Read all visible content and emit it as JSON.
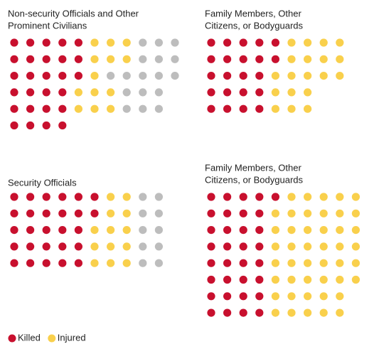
{
  "chart_data": [
    {
      "type": "dot-matrix",
      "title_lines": [
        "Non-security Officials and Other",
        "Prominent Civilians"
      ],
      "rows": [
        [
          5,
          3,
          3
        ],
        [
          5,
          3,
          3
        ],
        [
          5,
          1,
          5
        ],
        [
          4,
          3,
          3
        ],
        [
          4,
          3,
          3
        ],
        [
          4,
          0,
          0
        ]
      ]
    },
    {
      "type": "dot-matrix",
      "title_lines": [
        "Family Members, Other",
        "Citizens, or Bodyguards"
      ],
      "rows": [
        [
          5,
          4
        ],
        [
          5,
          4
        ],
        [
          4,
          5
        ],
        [
          4,
          3
        ],
        [
          4,
          3
        ]
      ]
    },
    {
      "type": "dot-matrix",
      "title_lines": [
        "Security Officials"
      ],
      "rows": [
        [
          6,
          2,
          2
        ],
        [
          6,
          2,
          2
        ],
        [
          5,
          3,
          2
        ],
        [
          5,
          3,
          2
        ],
        [
          5,
          3,
          2
        ]
      ]
    },
    {
      "type": "dot-matrix",
      "title_lines": [
        "Family Members, Other",
        "Citizens, or Bodyguards"
      ],
      "rows": [
        [
          5,
          5
        ],
        [
          4,
          6
        ],
        [
          4,
          6
        ],
        [
          4,
          6
        ],
        [
          4,
          6
        ],
        [
          4,
          6
        ],
        [
          4,
          5
        ],
        [
          4,
          5
        ]
      ]
    }
  ],
  "series_colors": [
    "#c8102e",
    "#f9d04c",
    "#bdbdbd"
  ],
  "legend": [
    "Killed",
    "Injured"
  ]
}
